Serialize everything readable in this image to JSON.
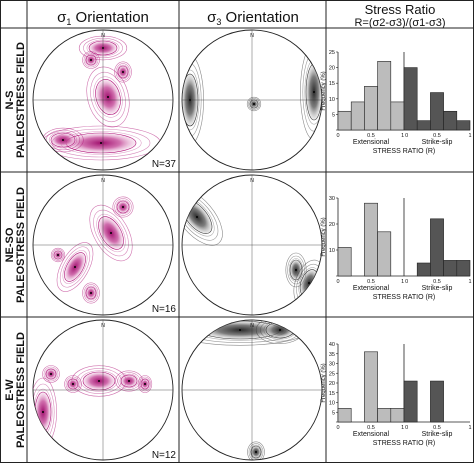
{
  "headers": {
    "sigma1": {
      "symbol": "σ",
      "sub": "1",
      "text": " Orientation"
    },
    "sigma3": {
      "symbol": "σ",
      "sub": "3",
      "text": " Orientation"
    },
    "ratio_title": "Stress Ratio",
    "ratio_formula": "R=(σ2-σ3)/(σ1-σ3)"
  },
  "colors": {
    "pink": "#b0157a",
    "gray": "#3a3a3a",
    "bar_light": "#bcbcbc",
    "bar_dark": "#555555"
  },
  "north_label": "N",
  "rows": [
    {
      "name_line1": "N-S",
      "name_line2": "PALEOSTRESS FIELD",
      "n_label": "N=37",
      "chart_data": {
        "type": "bar",
        "x": [
          0.05,
          0.15,
          0.25,
          0.35,
          0.45,
          0.55,
          0.65,
          0.75,
          0.85,
          0.95
        ],
        "extensional": [
          6,
          9,
          14,
          22,
          9
        ],
        "strike_slip": [
          20,
          3,
          12,
          6,
          3
        ],
        "ylim": [
          0,
          25
        ],
        "yticks": [
          0,
          5,
          10,
          15,
          20,
          25
        ],
        "ytick_labels": [
          "",
          "5",
          "10",
          "15",
          "20",
          "25"
        ],
        "xtick_labels": [
          "0",
          "0.5",
          "1",
          "0",
          "0.5",
          "1"
        ],
        "ylabel": "Frequency (%)",
        "group_labels": [
          "Extensional",
          "Strike-slip"
        ],
        "xlabel": "STRESS RATIO (R)"
      }
    },
    {
      "name_line1": "NE-SO",
      "name_line2": "PALEOSTRESS FIELD",
      "n_label": "N=16",
      "chart_data": {
        "type": "bar",
        "x": [
          0.05,
          0.15,
          0.25,
          0.35,
          0.45,
          0.55,
          0.65,
          0.75,
          0.85,
          0.95
        ],
        "extensional": [
          11,
          0,
          28,
          17,
          0
        ],
        "strike_slip": [
          0,
          5,
          22,
          6,
          6
        ],
        "ylim": [
          0,
          30
        ],
        "yticks": [
          0,
          10,
          20,
          30
        ],
        "ytick_labels": [
          "",
          "10",
          "20",
          "30"
        ],
        "xtick_labels": [
          "0",
          "0.5",
          "1",
          "0",
          "0.5",
          "1"
        ],
        "ylabel": "Frequency (%)",
        "group_labels": [
          "Extensional",
          "Strike-slip"
        ],
        "xlabel": "STRESS RATIO (R)"
      }
    },
    {
      "name_line1": "E-W",
      "name_line2": "PALEOSTRESS FIELD",
      "n_label": "N=12",
      "chart_data": {
        "type": "bar",
        "x": [
          0.05,
          0.15,
          0.25,
          0.35,
          0.45,
          0.55,
          0.65,
          0.75,
          0.85,
          0.95
        ],
        "extensional": [
          7,
          0,
          36,
          7,
          7
        ],
        "strike_slip": [
          21,
          0,
          21,
          0,
          0
        ],
        "ylim": [
          0,
          40
        ],
        "yticks": [
          0,
          5,
          10,
          15,
          20,
          25,
          30,
          35,
          40
        ],
        "ytick_labels": [
          "",
          "5",
          "10",
          "15",
          "20",
          "25",
          "30",
          "35",
          "40"
        ],
        "xtick_labels": [
          "0",
          "0.5",
          "1",
          "0",
          "0.5",
          "1"
        ],
        "ylabel": "Frequency (%)",
        "group_labels": [
          "Extensional",
          "Strike-slip"
        ],
        "xlabel": "STRESS RATIO (R)"
      }
    }
  ]
}
